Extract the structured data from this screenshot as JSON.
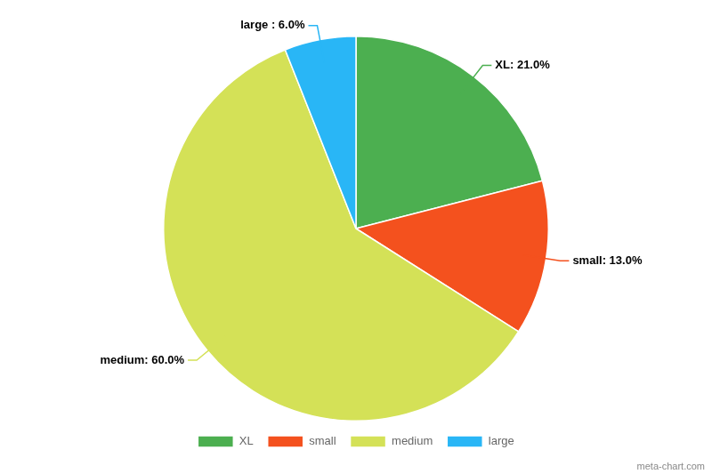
{
  "chart_data": {
    "type": "pie",
    "categories": [
      "XL",
      "small",
      "medium",
      "large"
    ],
    "values": [
      21.0,
      13.0,
      60.0,
      6.0
    ],
    "colors": [
      "#4caf50",
      "#f4511e",
      "#d4e157",
      "#29b6f6"
    ],
    "data_labels": true,
    "value_labels": [
      "XL: 21.0%",
      "small: 13.0%",
      "medium: 60.0%",
      "large : 6.0%"
    ],
    "legend": "bottom",
    "annotations": [
      "meta-chart.com"
    ]
  }
}
